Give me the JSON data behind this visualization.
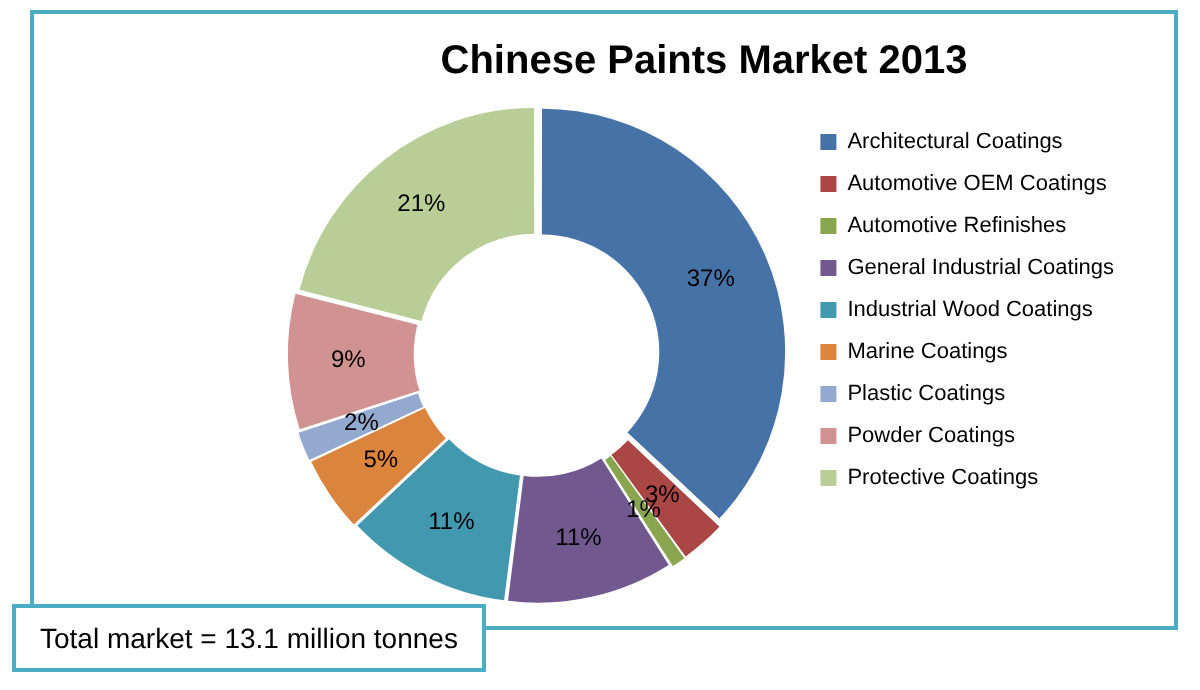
{
  "chart_data": {
    "type": "donut",
    "title": "Chinese Paints Market 2013",
    "categories": [
      "Architectural Coatings",
      "Automotive OEM Coatings",
      "Automotive Refinishes",
      "General Industrial Coatings",
      "Industrial Wood Coatings",
      "Marine Coatings",
      "Plastic Coatings",
      "Powder Coatings",
      "Protective Coatings"
    ],
    "values": [
      37,
      3,
      1,
      11,
      11,
      5,
      2,
      9,
      21
    ],
    "colors": [
      "#4573a7",
      "#aa4643",
      "#89a54e",
      "#71588f",
      "#4198af",
      "#db843d",
      "#93a9cf",
      "#d19392",
      "#b9cd96"
    ],
    "value_labels": [
      "37%",
      "3%",
      "1%",
      "11%",
      "11%",
      "5%",
      "2%",
      "9%",
      "21%"
    ],
    "legend": "right",
    "annotations": [
      "Total market = 13.1 million tonnes"
    ]
  }
}
